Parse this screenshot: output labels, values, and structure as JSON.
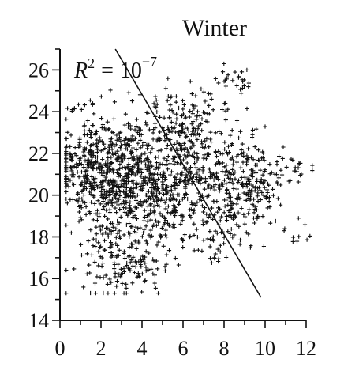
{
  "chart_data": {
    "type": "scatter",
    "title": "Winter",
    "xlabel": "",
    "ylabel": "",
    "xlim": [
      0,
      12
    ],
    "ylim": [
      14,
      27
    ],
    "x_ticks": [
      "0",
      "2",
      "4",
      "6",
      "8",
      "10",
      "12"
    ],
    "y_ticks": [
      "14",
      "16",
      "18",
      "20",
      "22",
      "24",
      "26"
    ],
    "marker": "+",
    "marker_color": "#111111",
    "annotation": {
      "symbol": "R",
      "sup": "2",
      "equals": "=",
      "value": "10",
      "value_sup": "−7"
    },
    "regression_line": {
      "x": [
        2.7,
        9.8
      ],
      "y": [
        27.0,
        15.1
      ]
    },
    "clusters": [
      {
        "center": [
          1.6,
          21.3
        ],
        "spread": [
          0.9,
          1.2
        ],
        "count": 300
      },
      {
        "center": [
          3.2,
          20.8
        ],
        "spread": [
          1.1,
          1.4
        ],
        "count": 360
      },
      {
        "center": [
          4.8,
          20.6
        ],
        "spread": [
          1.0,
          1.6
        ],
        "count": 280
      },
      {
        "center": [
          6.4,
          21.4
        ],
        "spread": [
          0.9,
          1.5
        ],
        "count": 200
      },
      {
        "center": [
          8.2,
          21.0
        ],
        "spread": [
          0.9,
          1.3
        ],
        "count": 170
      },
      {
        "center": [
          9.6,
          20.3
        ],
        "spread": [
          0.6,
          0.9
        ],
        "count": 110
      },
      {
        "center": [
          2.6,
          17.2
        ],
        "spread": [
          0.8,
          0.9
        ],
        "count": 100
      },
      {
        "center": [
          3.8,
          16.4
        ],
        "spread": [
          0.8,
          0.6
        ],
        "count": 60
      },
      {
        "center": [
          7.6,
          18.4
        ],
        "spread": [
          1.0,
          0.8
        ],
        "count": 70
      },
      {
        "center": [
          5.8,
          23.8
        ],
        "spread": [
          0.9,
          0.7
        ],
        "count": 70
      },
      {
        "center": [
          8.3,
          25.5
        ],
        "spread": [
          0.7,
          0.5
        ],
        "count": 28
      },
      {
        "center": [
          11.5,
          21.2
        ],
        "spread": [
          0.5,
          0.6
        ],
        "count": 24
      },
      {
        "center": [
          11.4,
          18.2
        ],
        "spread": [
          0.4,
          0.4
        ],
        "count": 10
      },
      {
        "center": [
          0.7,
          24.2
        ],
        "spread": [
          0.3,
          0.2
        ],
        "count": 8
      }
    ]
  }
}
